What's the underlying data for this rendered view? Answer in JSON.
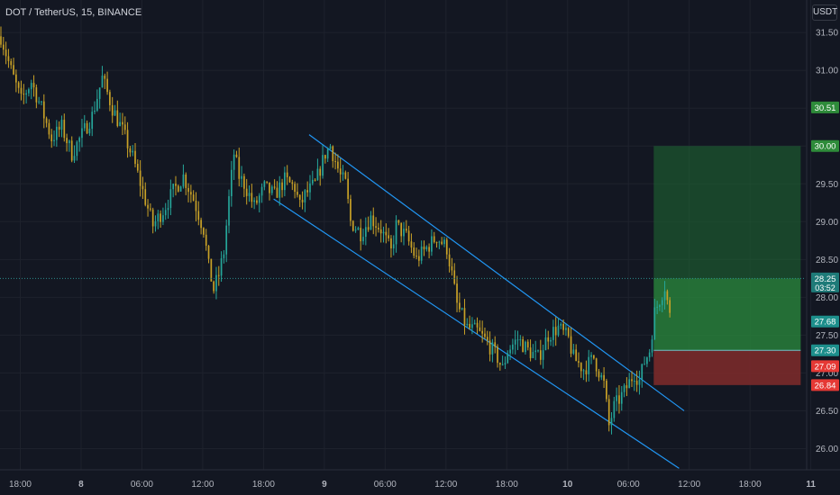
{
  "symbol_title": "DOT / TetherUS, 15, BINANCE",
  "currency": "USDT",
  "colors": {
    "background": "#131722",
    "grid": "#1e222d",
    "up": "#26a69a",
    "down": "#c9a227",
    "channel": "#2196f3",
    "profit_zone": "#1f6b33",
    "stop_zone": "#7a2a2a",
    "price_line": "#2c8c8c"
  },
  "chart_data": {
    "type": "candlestick",
    "title": "DOT / TetherUS, 15, BINANCE",
    "ylabel": "USDT",
    "ylim": [
      25.72,
      31.93
    ],
    "y_ticks": [
      26.0,
      26.5,
      27.0,
      27.5,
      28.0,
      28.5,
      29.0,
      29.5,
      30.0,
      30.5,
      31.0,
      31.5
    ],
    "x_ticks": [
      "18:00",
      "8",
      "06:00",
      "12:00",
      "18:00",
      "9",
      "06:00",
      "12:00",
      "18:00",
      "10",
      "06:00",
      "12:00",
      "18:00",
      "11"
    ],
    "bold_x_ticks": [
      "8",
      "9",
      "10",
      "11"
    ],
    "price_path": [
      [
        0,
        31.45
      ],
      [
        4,
        31.0
      ],
      [
        8,
        30.6
      ],
      [
        12,
        30.85
      ],
      [
        16,
        30.5
      ],
      [
        20,
        30.1
      ],
      [
        24,
        30.25
      ],
      [
        28,
        29.9
      ],
      [
        32,
        30.15
      ],
      [
        36,
        30.4
      ],
      [
        40,
        30.9
      ],
      [
        44,
        30.5
      ],
      [
        48,
        30.2
      ],
      [
        52,
        29.85
      ],
      [
        56,
        29.4
      ],
      [
        60,
        28.95
      ],
      [
        64,
        29.15
      ],
      [
        68,
        29.4
      ],
      [
        72,
        29.6
      ],
      [
        76,
        29.3
      ],
      [
        80,
        28.9
      ],
      [
        82,
        28.4
      ],
      [
        84,
        28.1
      ],
      [
        86,
        28.3
      ],
      [
        88,
        28.6
      ],
      [
        90,
        29.3
      ],
      [
        92,
        29.9
      ],
      [
        94,
        29.6
      ],
      [
        96,
        29.5
      ],
      [
        100,
        29.2
      ],
      [
        104,
        29.45
      ],
      [
        108,
        29.35
      ],
      [
        112,
        29.55
      ],
      [
        116,
        29.45
      ],
      [
        118,
        29.2
      ],
      [
        120,
        29.35
      ],
      [
        124,
        29.5
      ],
      [
        128,
        29.9
      ],
      [
        130,
        30.0
      ],
      [
        132,
        29.8
      ],
      [
        134,
        29.6
      ],
      [
        136,
        29.5
      ],
      [
        138,
        29.0
      ],
      [
        142,
        28.85
      ],
      [
        146,
        29.05
      ],
      [
        150,
        28.9
      ],
      [
        154,
        28.6
      ],
      [
        156,
        28.95
      ],
      [
        160,
        28.8
      ],
      [
        164,
        28.5
      ],
      [
        168,
        28.65
      ],
      [
        172,
        28.8
      ],
      [
        176,
        28.65
      ],
      [
        178,
        28.3
      ],
      [
        180,
        27.9
      ],
      [
        184,
        27.6
      ],
      [
        188,
        27.55
      ],
      [
        192,
        27.4
      ],
      [
        196,
        27.2
      ],
      [
        198,
        27.05
      ],
      [
        200,
        27.3
      ],
      [
        204,
        27.45
      ],
      [
        208,
        27.3
      ],
      [
        212,
        27.2
      ],
      [
        216,
        27.5
      ],
      [
        220,
        27.6
      ],
      [
        224,
        27.45
      ],
      [
        226,
        27.2
      ],
      [
        230,
        27.05
      ],
      [
        234,
        27.2
      ],
      [
        238,
        26.85
      ],
      [
        240,
        26.3
      ],
      [
        242,
        26.55
      ],
      [
        246,
        26.75
      ],
      [
        250,
        27.0
      ],
      [
        252,
        26.9
      ],
      [
        254,
        27.15
      ],
      [
        256,
        27.3
      ],
      [
        258,
        27.8
      ],
      [
        262,
        28.15
      ],
      [
        264,
        27.75
      ]
    ],
    "x_total_bars": 318,
    "current_bar_index": 264,
    "channel_upper": {
      "start": [
        122,
        30.15
      ],
      "end": [
        270,
        26.5
      ]
    },
    "channel_lower": {
      "start": [
        108,
        29.3
      ],
      "end": [
        268,
        25.74
      ]
    },
    "position": {
      "entry": 27.3,
      "target": 30.0,
      "stop": 26.84,
      "start_bar": 258,
      "end_bar": 316
    },
    "current_price": 28.25,
    "axis_labels": [
      {
        "value": 30.51,
        "text": "30.51",
        "color": "#2e8b3a"
      },
      {
        "value": 30.0,
        "text": "30.00",
        "color": "#2e8b3a"
      },
      {
        "value": 28.25,
        "text": "28.25",
        "sub": "03:52",
        "color": "#1e7a78"
      },
      {
        "value": 27.68,
        "text": "27.68",
        "color": "#1d8f8c"
      },
      {
        "value": 27.3,
        "text": "27.30",
        "color": "#1d8f8c"
      },
      {
        "value": 27.09,
        "text": "27.09",
        "color": "#e53935"
      },
      {
        "value": 26.84,
        "text": "26.84",
        "color": "#e53935"
      }
    ]
  }
}
